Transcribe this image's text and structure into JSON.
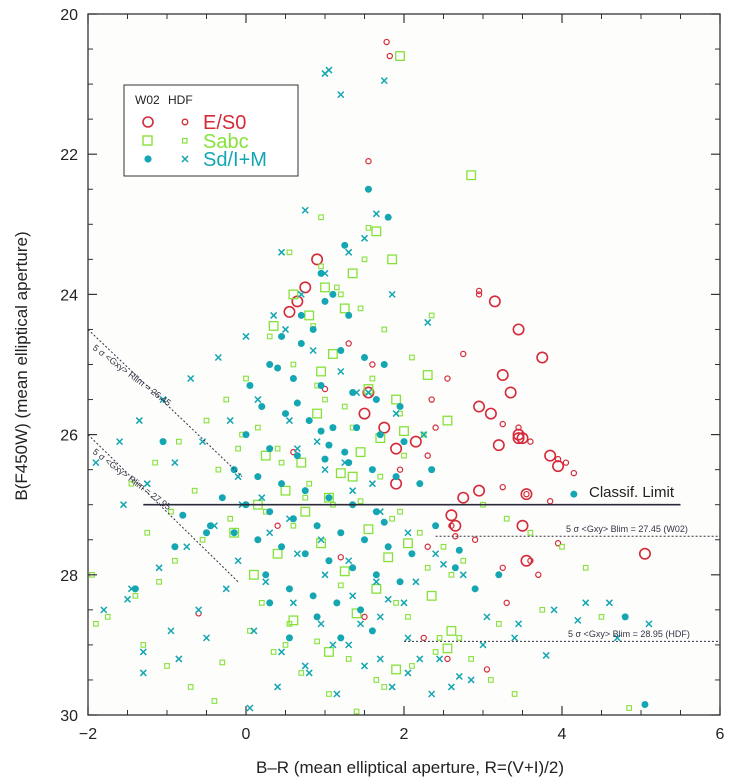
{
  "chart_data": {
    "type": "scatter",
    "xlabel": "B–R (mean elliptical aperture, R=(V+I)/2)",
    "ylabel": "B(F450W) (mean elliptical aperture)",
    "xlim": [
      -2,
      6
    ],
    "ylim": [
      30,
      20
    ],
    "y_inverted": true,
    "xticks": [
      "−2",
      "0",
      "2",
      "4",
      "6"
    ],
    "yticks": [
      "20",
      "22",
      "24",
      "26",
      "28",
      "30"
    ],
    "xtick_values": [
      -2,
      0,
      2,
      4,
      6
    ],
    "ytick_values": [
      20,
      22,
      24,
      26,
      28,
      30
    ],
    "legend": {
      "placement": "top-left",
      "headers": [
        "W02",
        "HDF"
      ],
      "entries": [
        "E/S0",
        "Sabc",
        "Sd/I+M"
      ]
    },
    "colors": {
      "es0": "#d42a3a",
      "sabc": "#86e23a",
      "sdim": "#14a6b2",
      "frame": "#333333"
    },
    "annotations": {
      "classif_limit": "Classif. Limit",
      "w02_limit": "5 σ <Gxy> Blim = 27.45 (W02)",
      "hdf_limit": "5 σ <Gxy> Blim = 28.95 (HDF)",
      "rlim_1": "5 σ <Gxy> Rlim = 26.45",
      "rlim_2": "5 σ <Gxy> Rlim = 27.95"
    },
    "lines": {
      "classif_limit_B": 27.0,
      "classif_limit_x": [
        -1.3,
        5.5
      ],
      "w02_B": 27.45,
      "hdf_B": 28.95
    },
    "series": [
      {
        "name": "E/S0",
        "symbol": "large-circle",
        "sample": "W02",
        "x": [
          0.9,
          0.75,
          0.65,
          0.55,
          1.55,
          1.5,
          1.9,
          1.75,
          1.9,
          2.15,
          2.6,
          2.75,
          2.65,
          2.95,
          3.15,
          3.25,
          3.35,
          3.1,
          3.45,
          3.5,
          3.75,
          3.2,
          3.45,
          3.45,
          3.55,
          3.85,
          3.95,
          2.95,
          3.5,
          3.55,
          5.05
        ],
        "y": [
          23.5,
          23.9,
          24.1,
          24.25,
          25.4,
          25.7,
          26.2,
          25.9,
          26.7,
          26.1,
          27.15,
          26.9,
          27.3,
          26.8,
          24.1,
          25.15,
          25.4,
          25.7,
          24.5,
          26.05,
          24.9,
          26.15,
          26.05,
          26.0,
          26.85,
          26.3,
          26.45,
          25.6,
          27.3,
          27.8,
          27.7
        ]
      },
      {
        "name": "E/S0",
        "symbol": "small-circle",
        "sample": "HDF",
        "x": [
          1.78,
          1.82,
          1.55,
          2.95,
          2.95,
          2.75,
          2.55,
          2.35,
          2.4,
          2.3,
          1.95,
          3.25,
          3.45,
          3.6,
          3.95,
          4.05,
          4.15,
          3.25,
          3.55,
          3.85,
          2.6,
          2.9,
          2.65,
          2.3,
          1.6,
          1.3,
          1.0,
          0.6,
          3.25,
          3.6,
          3.7,
          3.3,
          3.95,
          2.55,
          3.05,
          2.25,
          1.5,
          0.85,
          1.2,
          0.4,
          -0.6
        ],
        "y": [
          20.4,
          20.6,
          22.1,
          23.95,
          24.0,
          24.85,
          25.2,
          25.5,
          25.9,
          26.3,
          26.5,
          25.85,
          25.9,
          26.1,
          26.35,
          26.4,
          26.55,
          26.75,
          26.85,
          26.95,
          27.3,
          27.5,
          27.45,
          27.6,
          25.0,
          24.7,
          25.35,
          26.25,
          27.9,
          27.8,
          28.0,
          28.4,
          27.55,
          29.2,
          29.35,
          28.9,
          28.6,
          28.3,
          27.75,
          27.3,
          28.55
        ]
      },
      {
        "name": "Sabc",
        "symbol": "large-square",
        "sample": "W02",
        "x": [
          1.95,
          2.85,
          1.65,
          1.85,
          1.35,
          1.0,
          0.6,
          0.35,
          0.8,
          1.25,
          1.1,
          0.95,
          2.3,
          1.55,
          1.9,
          2.55,
          2.0,
          1.7,
          0.9,
          1.45,
          1.2,
          0.7,
          0.25,
          0.5,
          1.05,
          1.35,
          0.75,
          0.15,
          -0.15,
          1.55,
          1.8,
          2.05,
          0.95,
          0.4,
          0.1,
          1.25,
          1.65,
          1.4,
          0.6,
          2.35,
          2.6,
          1.9,
          2.55,
          1.05
        ],
        "y": [
          20.6,
          22.3,
          23.1,
          23.5,
          23.7,
          23.9,
          24.0,
          24.45,
          24.3,
          24.2,
          24.85,
          25.1,
          25.15,
          25.35,
          25.5,
          25.8,
          25.95,
          26.05,
          25.7,
          26.25,
          26.55,
          26.4,
          26.3,
          26.8,
          26.9,
          26.6,
          27.1,
          27.0,
          27.4,
          27.35,
          27.75,
          27.55,
          27.55,
          27.7,
          28.0,
          27.95,
          28.2,
          28.55,
          28.65,
          28.3,
          28.8,
          29.35,
          29.05,
          29.1
        ]
      },
      {
        "name": "Sabc",
        "symbol": "small-square",
        "sample": "HDF",
        "x": [
          0.55,
          0.95,
          1.2,
          1.5,
          1.75,
          2.1,
          2.35,
          0.3,
          0.0,
          -0.25,
          -0.5,
          -0.85,
          -1.15,
          -1.45,
          0.6,
          0.9,
          1.25,
          1.6,
          1.95,
          2.25,
          0.15,
          -0.1,
          -0.35,
          -0.65,
          -0.95,
          -1.25,
          0.45,
          0.8,
          1.1,
          1.45,
          1.85,
          2.2,
          2.5,
          2.75,
          3.0,
          3.3,
          3.6,
          4.0,
          4.3,
          -0.2,
          -0.55,
          -0.9,
          -1.1,
          -1.4,
          -1.75,
          -1.95,
          -1.9,
          0.2,
          0.55,
          0.9,
          1.3,
          1.65,
          2.05,
          2.45,
          2.85,
          -0.4,
          -0.7,
          -1.0,
          -1.3,
          0.05,
          0.35,
          0.7,
          1.05,
          1.4,
          1.75,
          2.1,
          2.4,
          2.7,
          3.1,
          3.4,
          3.75,
          4.5,
          4.85,
          1.0,
          1.35,
          0.25,
          0.6,
          1.7,
          2.0,
          1.55,
          0.85,
          1.15,
          -0.05,
          0.4,
          0.75,
          1.95,
          2.3,
          1.2,
          1.9,
          0.5,
          -0.3,
          2.6,
          3.2,
          0.95,
          1.45
        ],
        "y": [
          23.4,
          23.6,
          24.0,
          23.5,
          24.5,
          24.9,
          24.3,
          24.6,
          25.2,
          25.5,
          25.8,
          26.1,
          26.4,
          26.7,
          25.0,
          25.3,
          25.6,
          25.2,
          25.7,
          26.0,
          25.9,
          26.2,
          26.5,
          26.8,
          27.1,
          27.4,
          26.4,
          26.7,
          27.0,
          26.95,
          27.2,
          27.4,
          27.6,
          27.8,
          27.0,
          27.2,
          27.4,
          27.6,
          27.9,
          27.2,
          27.5,
          27.8,
          28.1,
          28.3,
          28.6,
          28.0,
          28.7,
          28.4,
          28.7,
          28.95,
          29.2,
          29.5,
          28.6,
          28.9,
          29.2,
          29.8,
          29.6,
          29.3,
          29.0,
          28.8,
          29.1,
          29.4,
          29.7,
          29.95,
          29.6,
          29.3,
          29.1,
          28.9,
          29.5,
          29.7,
          28.5,
          28.6,
          29.9,
          25.5,
          25.9,
          27.1,
          27.3,
          26.6,
          26.3,
          23.05,
          24.45,
          23.9,
          26.0,
          26.2,
          26.9,
          27.1,
          27.9,
          28.15,
          28.4,
          29.0,
          29.25,
          28.0,
          28.7,
          22.9,
          24.2
        ]
      },
      {
        "name": "Sd/I+M",
        "symbol": "filled-circle",
        "sample": "W02",
        "x": [
          1.55,
          1.8,
          1.25,
          0.95,
          1.1,
          0.7,
          0.45,
          0.85,
          1.2,
          1.5,
          1.75,
          0.3,
          0.05,
          0.6,
          0.95,
          1.35,
          1.65,
          1.95,
          0.2,
          0.5,
          0.8,
          1.1,
          1.4,
          1.7,
          2.0,
          0.0,
          0.3,
          0.65,
          1.0,
          1.3,
          1.6,
          1.9,
          2.2,
          -0.15,
          0.15,
          0.45,
          0.75,
          1.05,
          1.35,
          1.65,
          -0.3,
          0.0,
          0.3,
          0.6,
          0.9,
          1.2,
          1.5,
          1.8,
          2.1,
          -0.45,
          -0.15,
          0.15,
          0.45,
          0.75,
          1.05,
          1.35,
          1.65,
          1.95,
          0.25,
          0.55,
          0.85,
          1.15,
          1.45,
          -1.05,
          -0.8,
          -0.5,
          1.0,
          1.3,
          0.7,
          0.4,
          2.35,
          2.65,
          2.9,
          3.2,
          4.15,
          4.8,
          5.05,
          -1.4,
          -0.9,
          1.6,
          0.9,
          1.2,
          0.55,
          0.3,
          1.75,
          2.4,
          2.7,
          1.05,
          0.65,
          0.95,
          1.25
        ],
        "y": [
          22.5,
          22.9,
          23.3,
          23.7,
          24.0,
          24.3,
          24.6,
          24.5,
          24.8,
          24.9,
          25.0,
          25.0,
          25.3,
          25.2,
          25.3,
          25.4,
          25.5,
          25.6,
          25.6,
          25.7,
          25.8,
          25.9,
          25.9,
          26.0,
          26.1,
          26.0,
          26.2,
          26.3,
          26.35,
          26.4,
          26.5,
          26.6,
          26.7,
          26.5,
          26.6,
          26.7,
          26.8,
          26.9,
          27.0,
          27.1,
          26.9,
          27.0,
          27.1,
          27.2,
          27.3,
          27.4,
          27.5,
          27.6,
          27.7,
          27.3,
          27.4,
          27.5,
          27.6,
          27.7,
          27.8,
          27.9,
          28.0,
          28.1,
          28.0,
          28.2,
          28.3,
          28.4,
          28.5,
          26.1,
          27.15,
          27.4,
          24.1,
          24.3,
          24.7,
          25.05,
          26.5,
          27.9,
          28.2,
          28.0,
          26.85,
          28.6,
          29.85,
          28.2,
          27.6,
          28.8,
          28.6,
          28.9,
          28.9,
          28.4,
          27.25,
          27.3,
          27.65,
          26.15,
          25.55,
          25.95,
          26.25
        ]
      },
      {
        "name": "Sd/I+M",
        "symbol": "cross",
        "sample": "HDF",
        "x": [
          1.0,
          1.05,
          1.2,
          1.65,
          1.75,
          1.5,
          1.3,
          1.0,
          0.7,
          0.35,
          0.0,
          -0.35,
          -0.7,
          -1.05,
          -1.35,
          -1.6,
          -1.9,
          0.5,
          0.85,
          1.2,
          1.55,
          1.9,
          2.25,
          0.15,
          -0.2,
          -0.55,
          -0.9,
          -1.25,
          -1.55,
          0.65,
          1.0,
          1.35,
          1.7,
          2.05,
          2.4,
          2.75,
          -0.05,
          -0.4,
          -0.75,
          -1.1,
          -1.45,
          -1.8,
          0.3,
          0.65,
          1.0,
          1.35,
          1.7,
          2.05,
          2.45,
          2.85,
          -0.25,
          -0.6,
          -0.95,
          -1.3,
          0.1,
          0.45,
          0.8,
          1.15,
          1.5,
          1.85,
          2.2,
          2.6,
          3.0,
          3.45,
          3.9,
          4.3,
          4.7,
          5.1,
          -1.3,
          -1.5,
          0.55,
          0.9,
          1.25,
          1.6,
          0.2,
          0.55,
          0.95,
          1.3,
          1.65,
          2.0,
          -0.1,
          0.25,
          0.6,
          0.95,
          1.3,
          1.7,
          2.05,
          2.35,
          2.7,
          3.05,
          3.4,
          3.8,
          4.2,
          4.6,
          0.05,
          0.4,
          0.75,
          1.1,
          1.45,
          1.8,
          2.15,
          2.5,
          -0.5,
          -0.85,
          1.4,
          0.75,
          0.45,
          1.85,
          2.3,
          -0.1
        ],
        "y": [
          20.85,
          20.8,
          21.15,
          22.85,
          20.95,
          23.2,
          23.4,
          23.7,
          24.0,
          24.3,
          24.6,
          24.9,
          25.2,
          25.5,
          25.8,
          26.1,
          26.4,
          24.5,
          24.8,
          25.1,
          25.4,
          25.7,
          26.0,
          25.5,
          25.8,
          26.1,
          26.4,
          26.7,
          27.0,
          26.2,
          26.5,
          26.8,
          27.1,
          27.4,
          27.7,
          28.0,
          27.0,
          27.3,
          27.6,
          27.9,
          28.2,
          28.5,
          27.4,
          27.7,
          28.0,
          28.3,
          28.6,
          28.9,
          29.2,
          29.5,
          28.2,
          28.5,
          28.8,
          29.1,
          28.8,
          29.1,
          29.4,
          29.7,
          29.3,
          29.6,
          29.2,
          29.6,
          29.0,
          28.7,
          28.5,
          28.4,
          28.9,
          28.7,
          29.4,
          28.35,
          25.8,
          26.1,
          26.4,
          26.7,
          26.9,
          27.2,
          27.5,
          27.8,
          28.1,
          28.4,
          27.8,
          28.1,
          28.4,
          28.7,
          29.0,
          29.2,
          29.4,
          29.7,
          29.45,
          28.6,
          28.9,
          29.15,
          28.65,
          28.4,
          29.9,
          29.6,
          29.3,
          29.0,
          28.7,
          28.35,
          28.1,
          27.85,
          28.9,
          29.2,
          25.4,
          22.8,
          23.4,
          24.0,
          24.4,
          26.6
        ]
      }
    ]
  }
}
